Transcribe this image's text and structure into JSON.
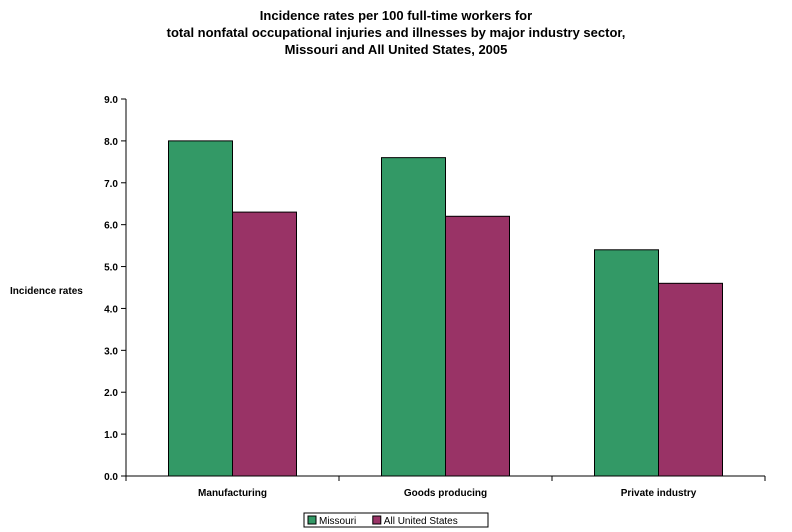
{
  "chart_data": {
    "type": "bar",
    "title_lines": [
      "Incidence rates per 100 full-time workers for",
      "total nonfatal occupational injuries and illnesses by major industry sector,",
      "Missouri and All United States, 2005"
    ],
    "ylabel": "Incidence rates",
    "xlabel": "",
    "categories": [
      "Manufacturing",
      "Goods producing",
      "Private industry"
    ],
    "series": [
      {
        "name": "Missouri",
        "color": "#339966",
        "values": [
          8.0,
          7.6,
          5.4
        ]
      },
      {
        "name": "All United States",
        "color": "#993366",
        "values": [
          6.3,
          6.2,
          4.6
        ]
      }
    ],
    "ylim": [
      0,
      9
    ],
    "yticks": [
      "0.0",
      "1.0",
      "2.0",
      "3.0",
      "4.0",
      "5.0",
      "6.0",
      "7.0",
      "8.0",
      "9.0"
    ],
    "grid": false,
    "legend_position": "bottom"
  }
}
